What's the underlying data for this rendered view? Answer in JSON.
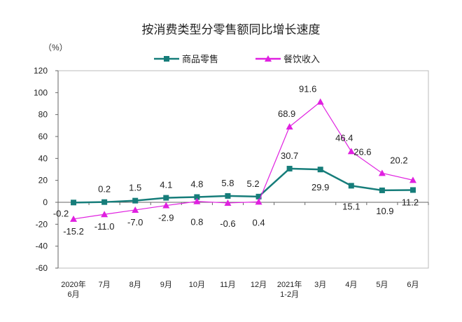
{
  "chart_data": {
    "type": "line",
    "title": "按消费类型分零售额同比增长速度",
    "ylabel": "（%）",
    "categories": [
      "2020年\n6月",
      "7月",
      "8月",
      "9月",
      "10月",
      "11月",
      "12月",
      "2021年\n1-2月",
      "3月",
      "4月",
      "5月",
      "6月"
    ],
    "ylim": [
      -60,
      120
    ],
    "yticks": [
      -60,
      -40,
      -20,
      0,
      20,
      40,
      60,
      80,
      100,
      120
    ],
    "grid": false,
    "legend_placement": "top",
    "series": [
      {
        "name": "商品零售",
        "color": "#167d7a",
        "marker": "square",
        "values": [
          -0.2,
          0.2,
          1.5,
          4.1,
          4.8,
          5.8,
          5.2,
          30.7,
          29.9,
          15.1,
          10.9,
          11.2
        ],
        "labels": [
          "-0.2",
          "0.2",
          "1.5",
          "4.1",
          "4.8",
          "5.8",
          "5.2",
          "30.7",
          "29.9",
          "15.1",
          "10.9",
          "11.2"
        ]
      },
      {
        "name": "餐饮收入",
        "color": "#e020e0",
        "marker": "triangle",
        "values": [
          -15.2,
          -11.0,
          -7.0,
          -2.9,
          0.8,
          -0.6,
          0.4,
          68.9,
          91.6,
          46.4,
          26.6,
          20.2
        ],
        "labels": [
          "-15.2",
          "-11.0",
          "-7.0",
          "-2.9",
          "0.8",
          "-0.6",
          "0.4",
          "68.9",
          "91.6",
          "46.4",
          "26.6",
          "20.2"
        ]
      }
    ]
  }
}
